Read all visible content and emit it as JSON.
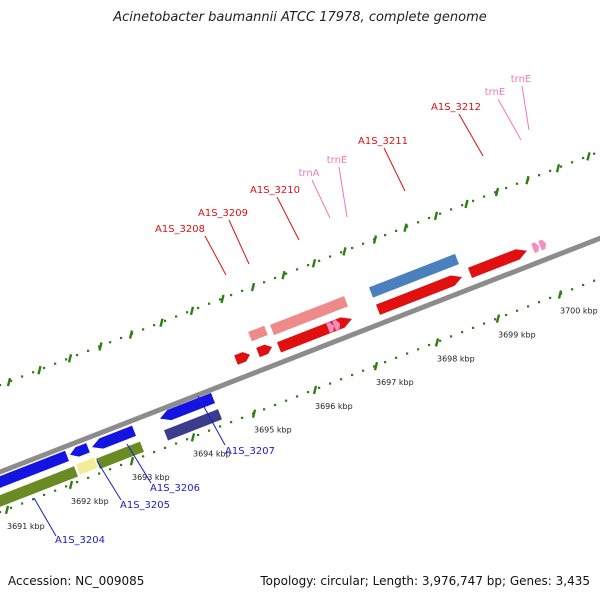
{
  "title": "Acinetobacter baumannii ATCC 17978, complete genome",
  "footer": {
    "accession": "Accession: NC_009085",
    "summary": "Topology: circular; Length: 3,976,747 bp; Genes: 3,435"
  },
  "colors": {
    "backbone": "#8c8c8c",
    "tick": "#2e7d12",
    "forward_label": "#dd1111",
    "forward_rna_label": "#f07ab0",
    "reverse_label": "#1a1acc"
  },
  "ruler": [
    {
      "kbp": 3691,
      "label": "3691 kbp"
    },
    {
      "kbp": 3692,
      "label": "3692 kbp"
    },
    {
      "kbp": 3693,
      "label": "3693 kbp"
    },
    {
      "kbp": 3694,
      "label": "3694 kbp"
    },
    {
      "kbp": 3695,
      "label": "3695 kbp"
    },
    {
      "kbp": 3696,
      "label": "3696 kbp"
    },
    {
      "kbp": 3697,
      "label": "3697 kbp"
    },
    {
      "kbp": 3698,
      "label": "3698 kbp"
    },
    {
      "kbp": 3699,
      "label": "3699 kbp"
    },
    {
      "kbp": 3700,
      "label": "3700 kbp"
    }
  ],
  "forward_genes": [
    {
      "label": "A1S_3208",
      "kind": "gene"
    },
    {
      "label": "A1S_3209",
      "kind": "gene"
    },
    {
      "label": "A1S_3210",
      "kind": "gene"
    },
    {
      "label": "trnA",
      "kind": "rna"
    },
    {
      "label": "trnE",
      "kind": "rna"
    },
    {
      "label": "A1S_3211",
      "kind": "gene"
    },
    {
      "label": "A1S_3212",
      "kind": "gene"
    },
    {
      "label": "trnE",
      "kind": "rna"
    },
    {
      "label": "trnE",
      "kind": "rna"
    }
  ],
  "reverse_genes": [
    {
      "label": "A1S_3204"
    },
    {
      "label": "A1S_3205"
    },
    {
      "label": "A1S_3206"
    },
    {
      "label": "A1S_3207"
    }
  ]
}
